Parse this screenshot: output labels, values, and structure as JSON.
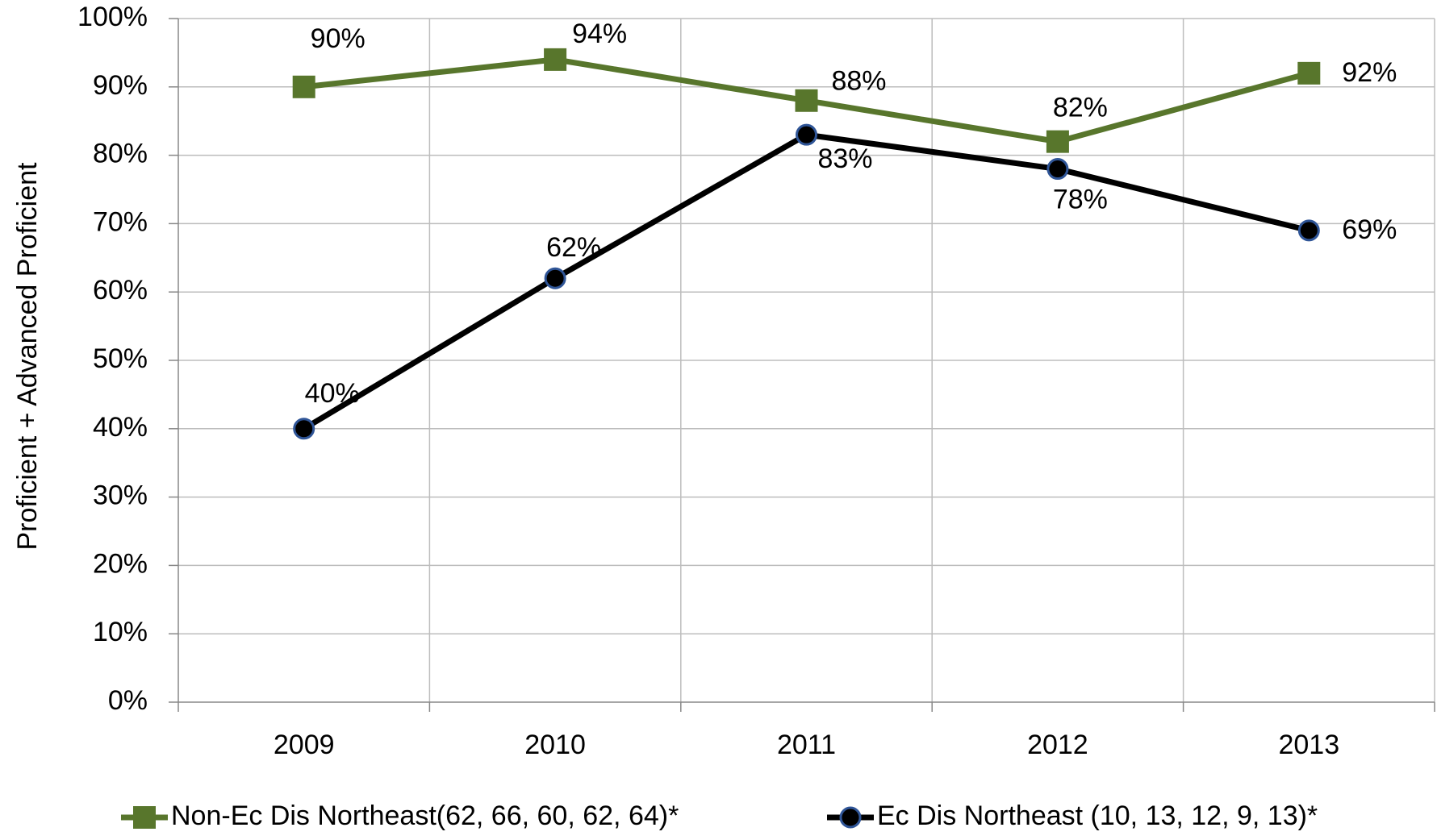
{
  "chart_data": {
    "type": "line",
    "y_label": "Proficient + Advanced Proficient",
    "categories": [
      "2009",
      "2010",
      "2011",
      "2012",
      "2013"
    ],
    "series": [
      {
        "name": "Non-Ec Dis Northeast(62, 66, 60, 62, 64)*",
        "color": "#58762c",
        "marker": "square",
        "values": [
          90,
          94,
          88,
          82,
          92
        ],
        "value_labels": [
          "90%",
          "94%",
          "88%",
          "82%",
          "92%"
        ]
      },
      {
        "name": "Ec Dis Northeast (10, 13, 12, 9, 13)*",
        "color": "#000000",
        "marker": "circle",
        "values": [
          40,
          62,
          83,
          78,
          69
        ],
        "value_labels": [
          "40%",
          "62%",
          "83%",
          "78%",
          "69%"
        ]
      }
    ],
    "ylim": [
      0,
      100
    ],
    "yticks": [
      {
        "value": 0,
        "label": "0%"
      },
      {
        "value": 10,
        "label": "10%"
      },
      {
        "value": 20,
        "label": "20%"
      },
      {
        "value": 30,
        "label": "30%"
      },
      {
        "value": 40,
        "label": "40%"
      },
      {
        "value": 50,
        "label": "50%"
      },
      {
        "value": 60,
        "label": "60%"
      },
      {
        "value": 70,
        "label": "70%"
      },
      {
        "value": 80,
        "label": "80%"
      },
      {
        "value": 90,
        "label": "90%"
      },
      {
        "value": 100,
        "label": "100%"
      }
    ],
    "grid": true,
    "legend": "bottom"
  }
}
